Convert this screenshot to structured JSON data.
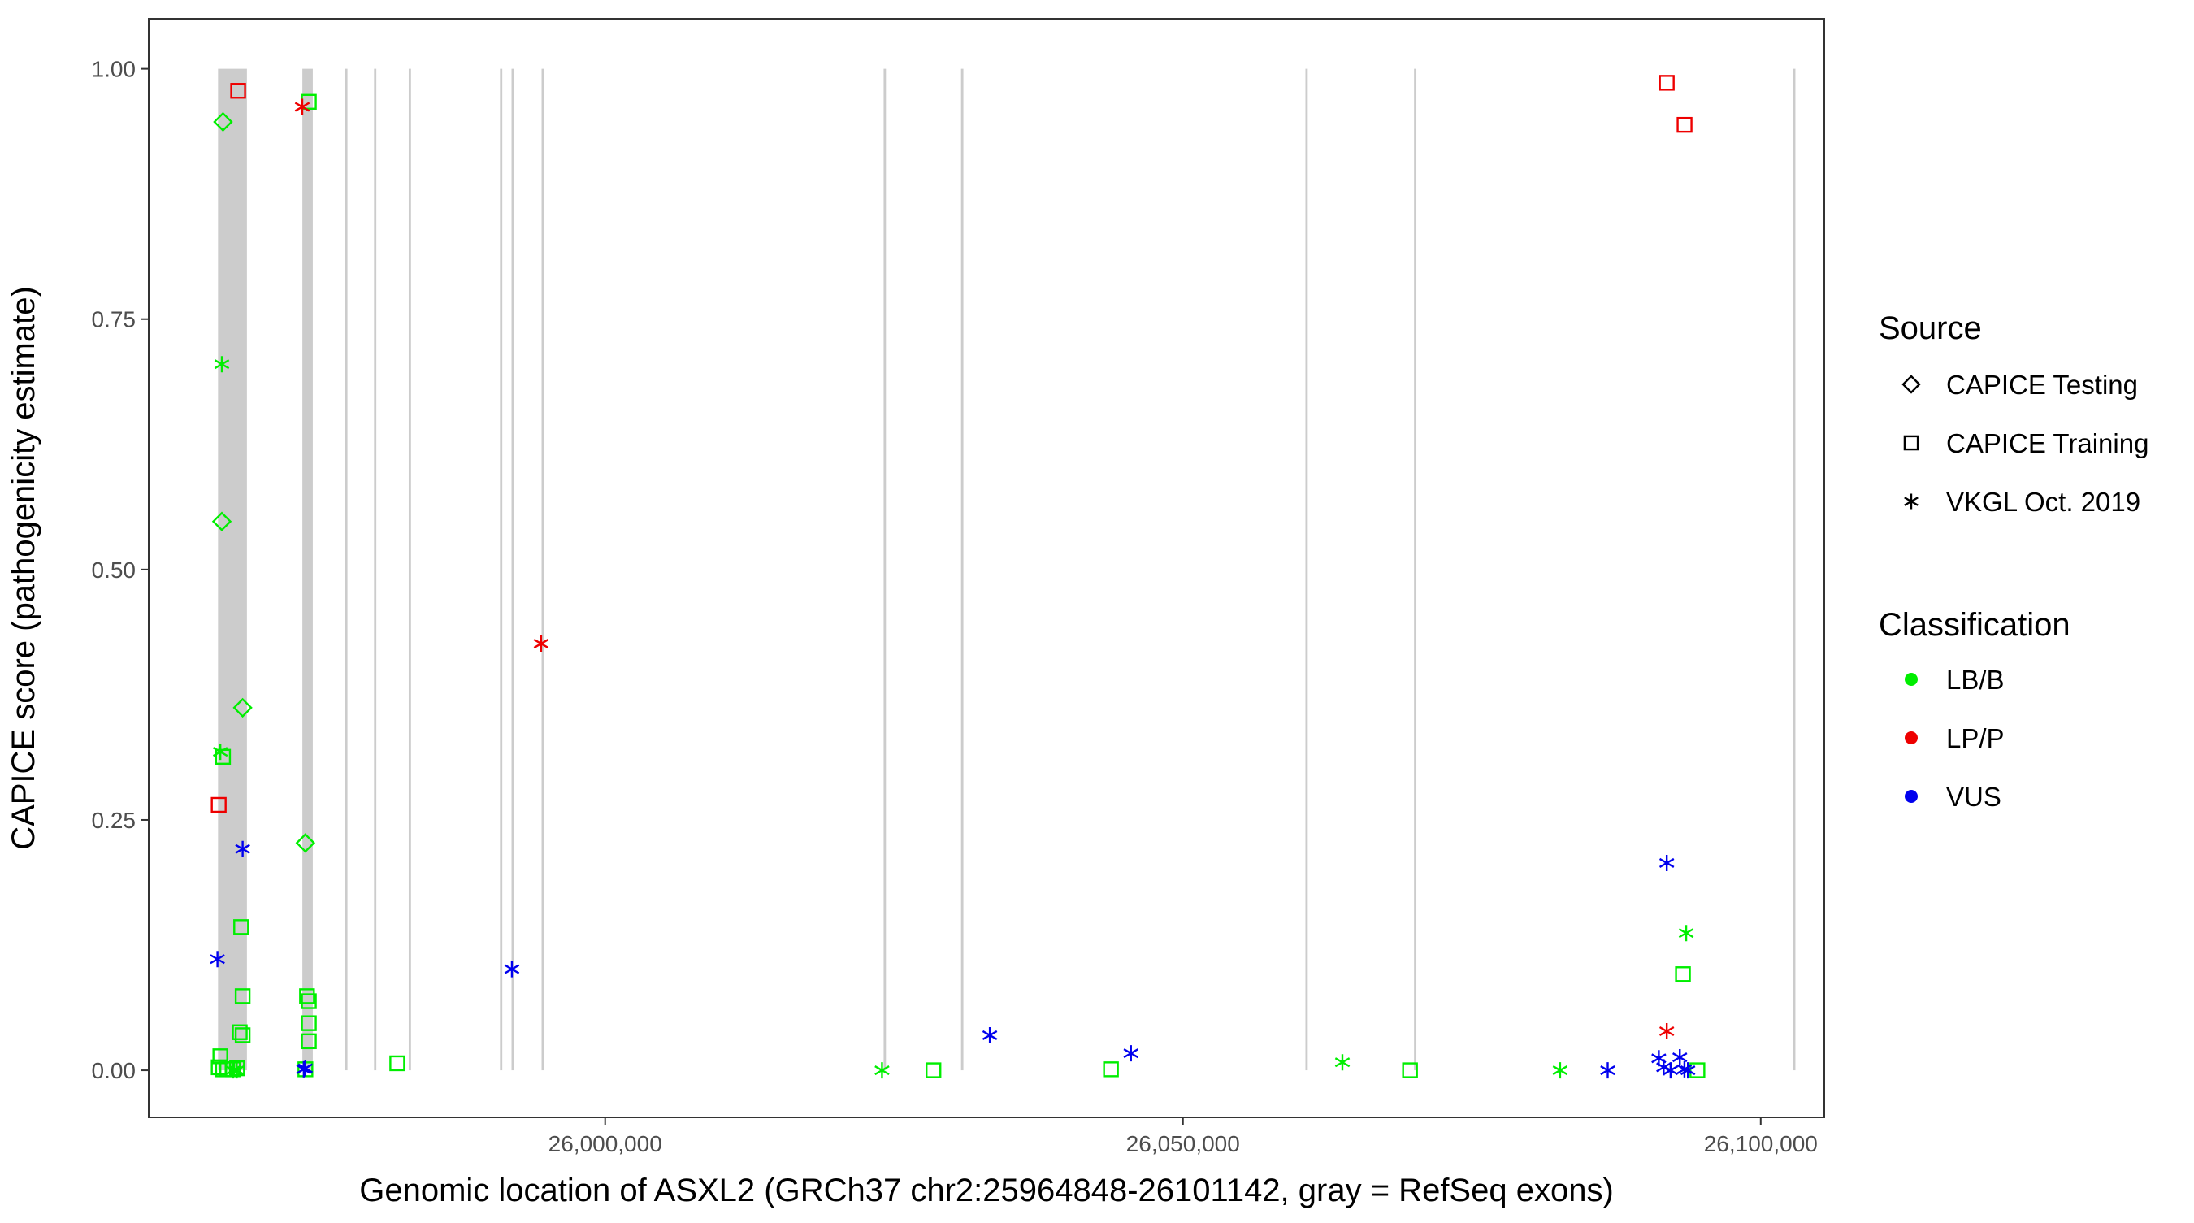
{
  "chart_data": {
    "type": "scatter",
    "title": "",
    "xlabel": "Genomic location of ASXL2 (GRCh37 chr2:25964848-26101142, gray = RefSeq exons)",
    "ylabel": "CAPICE score (pathogenicity estimate)",
    "xlim": [
      25960500,
      26105500
    ],
    "ylim": [
      -0.047,
      1.05
    ],
    "x_ticks": [
      26000000,
      26050000,
      26100000
    ],
    "x_tick_labels": [
      "26,000,000",
      "26,050,000",
      "26,100,000"
    ],
    "y_ticks": [
      0.0,
      0.25,
      0.5,
      0.75,
      1.0
    ],
    "y_tick_labels": [
      "0.00",
      "0.25",
      "0.50",
      "0.75",
      "1.00"
    ],
    "grid": false,
    "exons": [
      {
        "start": 25966500,
        "end": 25969000
      },
      {
        "start": 25973800,
        "end": 25974700
      },
      {
        "start": 25977500,
        "end": 25977700
      },
      {
        "start": 25980000,
        "end": 25980200
      },
      {
        "start": 25983000,
        "end": 25983200
      },
      {
        "start": 25990900,
        "end": 25991100
      },
      {
        "start": 25991900,
        "end": 25992100
      },
      {
        "start": 25994500,
        "end": 25994700
      },
      {
        "start": 26024100,
        "end": 26024300
      },
      {
        "start": 26030800,
        "end": 26031000
      },
      {
        "start": 26060600,
        "end": 26060800
      },
      {
        "start": 26070000,
        "end": 26070200
      },
      {
        "start": 26102800,
        "end": 26103000
      }
    ],
    "legend": {
      "position": "right",
      "source_title": "Source",
      "source_entries": [
        {
          "label": "CAPICE Testing",
          "shape": "diamond"
        },
        {
          "label": "CAPICE Training",
          "shape": "square"
        },
        {
          "label": "VKGL Oct. 2019",
          "shape": "asterisk"
        }
      ],
      "class_title": "Classification",
      "class_entries": [
        {
          "label": "LB/B",
          "color": "#00ee00"
        },
        {
          "label": "LP/P",
          "color": "#ee0000"
        },
        {
          "label": "VUS",
          "color": "#0000ee"
        }
      ]
    },
    "colors": {
      "LB/B": "#00ee00",
      "LP/P": "#ee0000",
      "VUS": "#0000ee"
    },
    "series": [
      {
        "source": "CAPICE Testing",
        "classification": "LB/B",
        "x": [
          25966930,
          25966830,
          25968630,
          25974060
        ],
        "y": [
          0.947,
          0.548,
          0.362,
          0.227
        ]
      },
      {
        "source": "CAPICE Training",
        "classification": "LB/B",
        "x": [
          25974360,
          25966930,
          25968500,
          25968630,
          25968380,
          25968630,
          25974200,
          25974360,
          25974360,
          25974360,
          25966700,
          25966560,
          25966930,
          25967300,
          25967800,
          25968150,
          25974060,
          25982010,
          26028410,
          26043770,
          26069650,
          26093270,
          26094520
        ],
        "y": [
          0.967,
          0.313,
          0.143,
          0.074,
          0.038,
          0.035,
          0.074,
          0.069,
          0.047,
          0.029,
          0.014,
          0.003,
          0.001,
          0.001,
          0.001,
          0.002,
          0.001,
          0.007,
          0.0,
          0.001,
          0.0,
          0.096,
          0.0
        ]
      },
      {
        "source": "CAPICE Training",
        "classification": "LP/P",
        "x": [
          25968240,
          25966560,
          26091870,
          26093410
        ],
        "y": [
          0.978,
          0.265,
          0.986,
          0.944
        ]
      },
      {
        "source": "VKGL Oct. 2019",
        "classification": "LB/B",
        "x": [
          25966830,
          25966700,
          25967800,
          25968120,
          26023960,
          26063800,
          26082640,
          26093550
        ],
        "y": [
          0.705,
          0.318,
          0.0,
          0.0,
          0.0,
          0.008,
          0.0,
          0.137
        ]
      },
      {
        "source": "VKGL Oct. 2019",
        "classification": "LP/P",
        "x": [
          25973790,
          25994460,
          26091870
        ],
        "y": [
          0.962,
          0.426,
          0.039
        ]
      },
      {
        "source": "VKGL Oct. 2019",
        "classification": "VUS",
        "x": [
          25966450,
          25968630,
          25974060,
          25973920,
          25991930,
          26033290,
          26045500,
          26091870,
          26086760,
          26091180,
          26091600,
          26092200,
          26093000,
          26093400,
          26093700
        ],
        "y": [
          0.111,
          0.221,
          0.002,
          0.001,
          0.101,
          0.035,
          0.017,
          0.207,
          0.0,
          0.012,
          0.003,
          0.0,
          0.013,
          0.001,
          0.0
        ]
      }
    ]
  }
}
